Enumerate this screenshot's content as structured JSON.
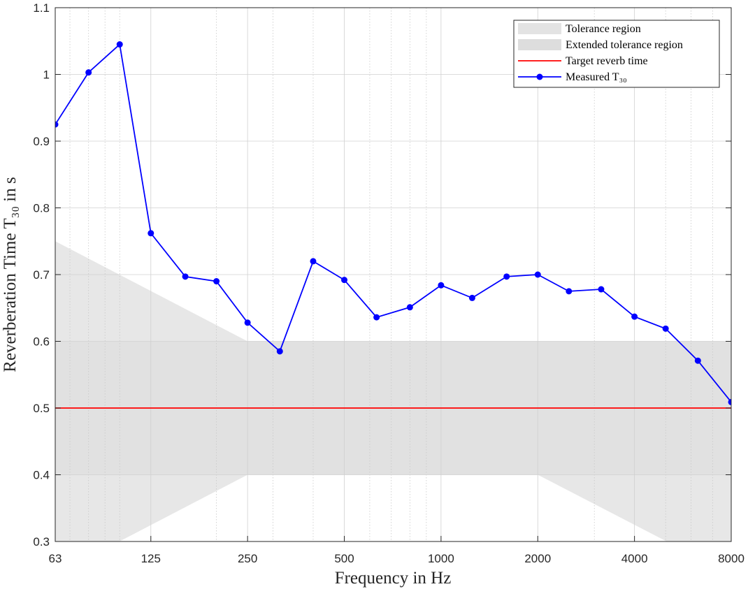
{
  "chart_data": {
    "type": "line",
    "x_label": "Frequency in Hz",
    "y_label": "Reverberation Time T₃₀ in s",
    "xscale": "log",
    "xlim": [
      63,
      8000
    ],
    "xticks": [
      63,
      125,
      250,
      500,
      1000,
      2000,
      4000,
      8000
    ],
    "xminorticks": [
      70,
      80,
      90,
      100,
      200,
      300,
      400,
      600,
      700,
      800,
      900,
      3000,
      5000,
      6000,
      7000
    ],
    "ylim": [
      0.3,
      1.1
    ],
    "yticks": [
      0.3,
      0.4,
      0.5,
      0.6,
      0.7,
      0.8,
      0.9,
      1,
      1.1
    ],
    "grid": true,
    "legend": "top-right",
    "regions": [
      {
        "name": "Tolerance region",
        "color": "#e3e3e3",
        "x": [
          63,
          8000
        ],
        "upper": [
          0.6,
          0.6
        ],
        "lower": [
          0.4,
          0.4
        ]
      },
      {
        "name": "Extended tolerance region",
        "color": "#dddddd",
        "x": [
          63,
          250,
          2000,
          8000
        ],
        "upper": [
          0.75,
          0.6,
          0.6,
          0.6
        ],
        "lower": [
          0.25,
          0.4,
          0.4,
          0.25
        ]
      }
    ],
    "series": [
      {
        "name": "Target reverb time",
        "color": "#ff0000",
        "x": [
          63,
          8000
        ],
        "values": [
          0.5,
          0.5
        ],
        "markers": false
      },
      {
        "name": "Measured T₃₀",
        "color": "#0000ff",
        "markers": true,
        "x": [
          63,
          80,
          100,
          125,
          160,
          200,
          250,
          315,
          400,
          500,
          630,
          800,
          1000,
          1250,
          1600,
          2000,
          2500,
          3150,
          4000,
          5000,
          6300,
          8000
        ],
        "values": [
          0.925,
          1.003,
          1.045,
          0.762,
          0.697,
          0.69,
          0.628,
          0.585,
          0.72,
          0.692,
          0.636,
          0.651,
          0.684,
          0.665,
          0.697,
          0.7,
          0.675,
          0.678,
          0.637,
          0.619,
          0.571,
          0.509
        ]
      }
    ]
  }
}
